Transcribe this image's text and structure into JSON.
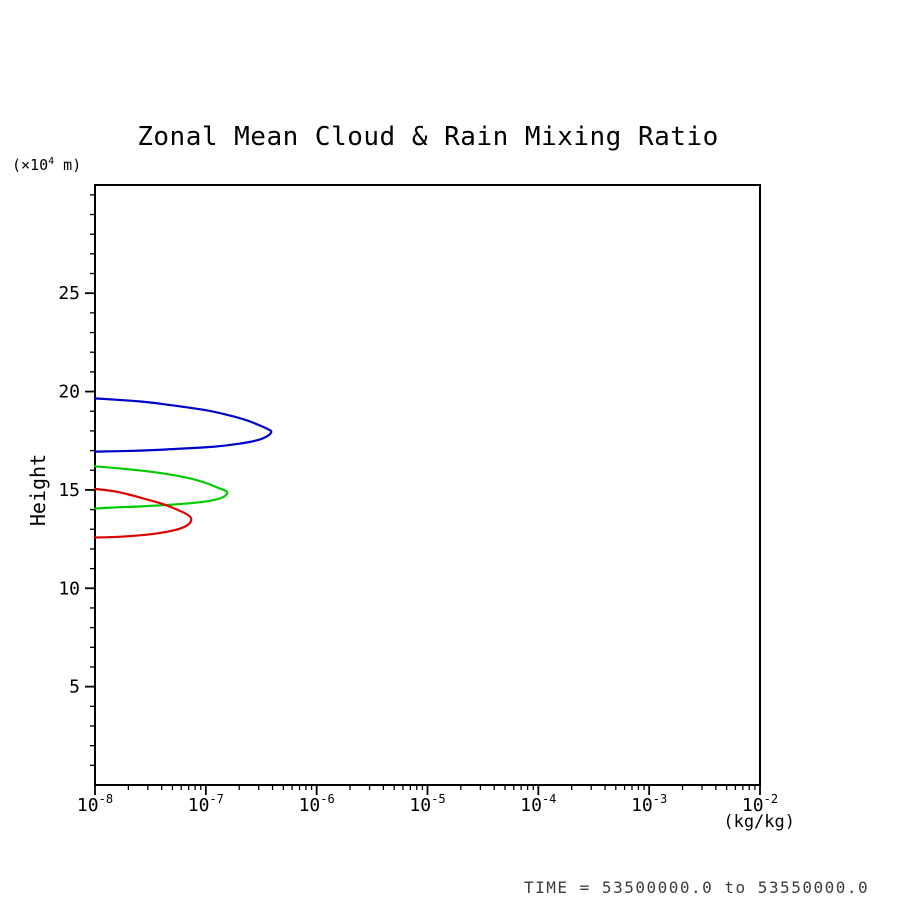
{
  "title": "Zonal Mean Cloud & Rain Mixing Ratio",
  "y_axis": {
    "label": "Height",
    "unit_pre": "(×10",
    "unit_sup": "4",
    "unit_post": " m)"
  },
  "x_axis": {
    "unit": "(kg/kg)"
  },
  "footer": "TIME = 53500000.0 to 53550000.0",
  "chart_data": {
    "type": "line",
    "title": "Zonal Mean Cloud & Rain Mixing Ratio",
    "xlabel": "(kg/kg)",
    "ylabel": "Height",
    "ylabel_unit": "(x10^4 m)",
    "x_scale": "log10",
    "xlim": [
      1e-08,
      0.01
    ],
    "ylim": [
      0,
      30.5
    ],
    "x_tick_base": "10",
    "x_tick_exponents": [
      "-8",
      "-7",
      "-6",
      "-5",
      "-4",
      "-3",
      "-2"
    ],
    "y_ticks": [
      5,
      10,
      15,
      20,
      25
    ],
    "y_minor_step": 1,
    "grid": false,
    "frame": true,
    "legend": "none",
    "annotation": "TIME = 53500000.0 to 53550000.0",
    "series": [
      {
        "name": "blue-contour",
        "color": "#0000cc",
        "points": [
          [
            1e-08,
            19.65
          ],
          [
            2.5e-08,
            19.5
          ],
          [
            5e-08,
            19.3
          ],
          [
            1e-07,
            19.05
          ],
          [
            1.6e-07,
            18.8
          ],
          [
            2.3e-07,
            18.55
          ],
          [
            3e-07,
            18.3
          ],
          [
            3.6e-07,
            18.1
          ],
          [
            3.9e-07,
            17.95
          ],
          [
            3.5e-07,
            17.7
          ],
          [
            2.8e-07,
            17.5
          ],
          [
            2e-07,
            17.35
          ],
          [
            1.2e-07,
            17.2
          ],
          [
            6e-08,
            17.1
          ],
          [
            2.5e-08,
            17.0
          ],
          [
            1e-08,
            16.95
          ]
        ]
      },
      {
        "name": "green-contour",
        "color": "#00cc00",
        "points": [
          [
            1e-08,
            16.2
          ],
          [
            2e-08,
            16.05
          ],
          [
            4e-08,
            15.85
          ],
          [
            7e-08,
            15.6
          ],
          [
            1e-07,
            15.35
          ],
          [
            1.3e-07,
            15.1
          ],
          [
            1.55e-07,
            14.9
          ],
          [
            1.45e-07,
            14.65
          ],
          [
            1.1e-07,
            14.45
          ],
          [
            6.5e-08,
            14.3
          ],
          [
            3e-08,
            14.18
          ],
          [
            1.4e-08,
            14.1
          ],
          [
            1e-08,
            14.05
          ]
        ]
      },
      {
        "name": "red-contour",
        "color": "#dd0000",
        "points": [
          [
            1e-08,
            15.05
          ],
          [
            1.6e-08,
            14.9
          ],
          [
            2.6e-08,
            14.6
          ],
          [
            4e-08,
            14.3
          ],
          [
            5.5e-08,
            14.0
          ],
          [
            6.8e-08,
            13.75
          ],
          [
            7.4e-08,
            13.5
          ],
          [
            6.8e-08,
            13.2
          ],
          [
            5.2e-08,
            12.95
          ],
          [
            3.2e-08,
            12.75
          ],
          [
            1.7e-08,
            12.62
          ],
          [
            1e-08,
            12.58
          ]
        ]
      }
    ]
  }
}
